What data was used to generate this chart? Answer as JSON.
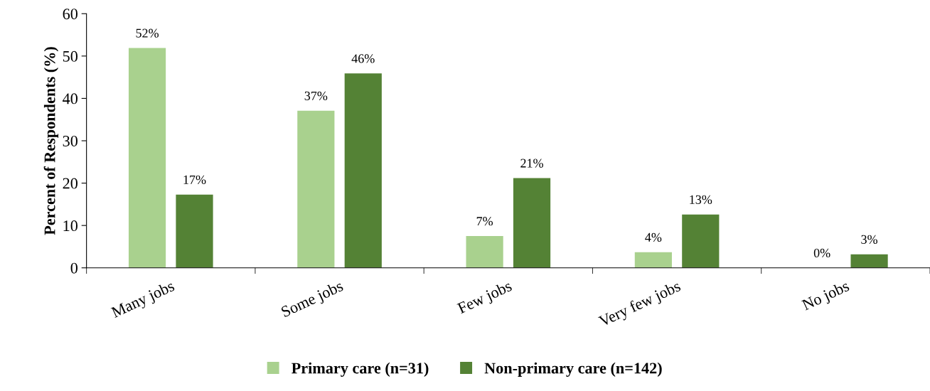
{
  "chart_data": {
    "type": "bar",
    "ylabel": "Percent of Respondents (%)",
    "categories": [
      "Many jobs",
      "Some jobs",
      "Few jobs",
      "Very few jobs",
      "No jobs"
    ],
    "series": [
      {
        "name": "Primary care (n=31)",
        "color": "#a9d18e",
        "values": [
          51.9,
          37.1,
          7.5,
          3.7,
          0
        ],
        "value_labels": [
          "52%",
          "37%",
          "7%",
          "4%",
          "0%"
        ]
      },
      {
        "name": "Non-primary care (n=142)",
        "color": "#548235",
        "values": [
          17.3,
          45.9,
          21.2,
          12.6,
          3.2
        ],
        "value_labels": [
          "17%",
          "46%",
          "21%",
          "13%",
          "3%"
        ]
      }
    ],
    "ylim": [
      0,
      60
    ],
    "yticks": [
      0,
      10,
      20,
      30,
      40,
      50,
      60
    ],
    "grid": false,
    "legend": "bottom"
  }
}
